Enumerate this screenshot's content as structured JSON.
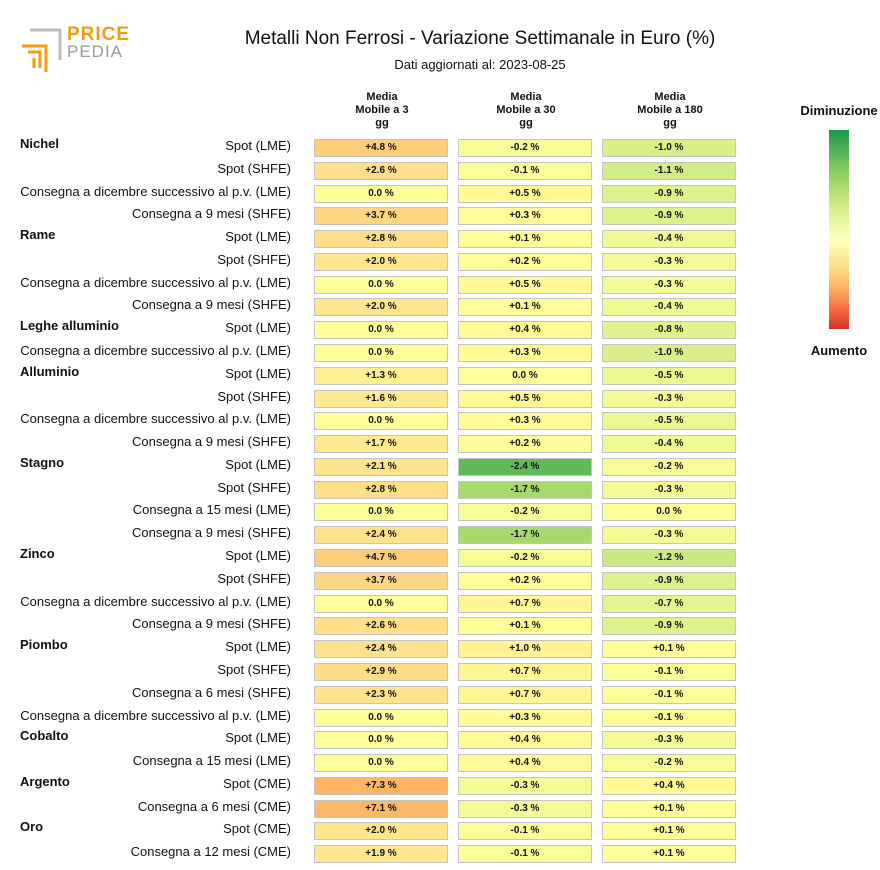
{
  "header": {
    "logo_top": "PRICE",
    "logo_bottom": "PEDIA",
    "title": "Metalli Non Ferrosi - Variazione Settimanale in Euro (%)",
    "subtitle": "Dati aggiornati al: 2023-08-25"
  },
  "legend": {
    "top_label": "Diminuzione",
    "bottom_label": "Aumento",
    "colors": [
      "#1a9850",
      "#91cf60",
      "#d9ef8b",
      "#ffffbf",
      "#fee08b",
      "#fdae61",
      "#f46d43",
      "#d73027"
    ]
  },
  "chart_data": {
    "type": "table",
    "title": "Metalli Non Ferrosi - Variazione Settimanale in Euro (%)",
    "columns": [
      {
        "line1": "Media",
        "line2": "Mobile a 3",
        "line3": "gg"
      },
      {
        "line1": "Media",
        "line2": "Mobile a 30",
        "line3": "gg"
      },
      {
        "line1": "Media",
        "line2": "Mobile a 180",
        "line3": "gg"
      }
    ],
    "rows": [
      {
        "group": "Nichel",
        "label": "Spot (LME)",
        "values": [
          "+4.8 %",
          "-0.2 %",
          "-1.0 %"
        ]
      },
      {
        "group": "",
        "label": "Spot (SHFE)",
        "values": [
          "+2.6 %",
          "-0.1 %",
          "-1.1 %"
        ]
      },
      {
        "group": "",
        "label": "Consegna a dicembre successivo al p.v. (LME)",
        "values": [
          "0.0 %",
          "+0.5 %",
          "-0.9 %"
        ]
      },
      {
        "group": "",
        "label": "Consegna a 9 mesi (SHFE)",
        "values": [
          "+3.7 %",
          "+0.3 %",
          "-0.9 %"
        ]
      },
      {
        "group": "Rame",
        "label": "Spot (LME)",
        "values": [
          "+2.8 %",
          "+0.1 %",
          "-0.4 %"
        ]
      },
      {
        "group": "",
        "label": "Spot (SHFE)",
        "values": [
          "+2.0 %",
          "+0.2 %",
          "-0.3 %"
        ]
      },
      {
        "group": "",
        "label": "Consegna a dicembre successivo al p.v. (LME)",
        "values": [
          "0.0 %",
          "+0.5 %",
          "-0.3 %"
        ]
      },
      {
        "group": "",
        "label": "Consegna a 9 mesi (SHFE)",
        "values": [
          "+2.0 %",
          "+0.1 %",
          "-0.4 %"
        ]
      },
      {
        "group": "Leghe alluminio",
        "label": "Spot (LME)",
        "values": [
          "0.0 %",
          "+0.4 %",
          "-0.8 %"
        ]
      },
      {
        "group": "",
        "label": "Consegna a dicembre successivo al p.v. (LME)",
        "values": [
          "0.0 %",
          "+0.3 %",
          "-1.0 %"
        ]
      },
      {
        "group": "Alluminio",
        "label": "Spot (LME)",
        "values": [
          "+1.3 %",
          "0.0 %",
          "-0.5 %"
        ]
      },
      {
        "group": "",
        "label": "Spot (SHFE)",
        "values": [
          "+1.6 %",
          "+0.5 %",
          "-0.3 %"
        ]
      },
      {
        "group": "",
        "label": "Consegna a dicembre successivo al p.v. (LME)",
        "values": [
          "0.0 %",
          "+0.3 %",
          "-0.5 %"
        ]
      },
      {
        "group": "",
        "label": "Consegna a 9 mesi (SHFE)",
        "values": [
          "+1.7 %",
          "+0.2 %",
          "-0.4 %"
        ]
      },
      {
        "group": "Stagno",
        "label": "Spot (LME)",
        "values": [
          "+2.1 %",
          "-2.4 %",
          "-0.2 %"
        ]
      },
      {
        "group": "",
        "label": "Spot (SHFE)",
        "values": [
          "+2.8 %",
          "-1.7 %",
          "-0.3 %"
        ]
      },
      {
        "group": "",
        "label": "Consegna a 15 mesi (LME)",
        "values": [
          "0.0 %",
          "-0.2 %",
          "0.0 %"
        ]
      },
      {
        "group": "",
        "label": "Consegna a 9 mesi (SHFE)",
        "values": [
          "+2.4 %",
          "-1.7 %",
          "-0.3 %"
        ]
      },
      {
        "group": "Zinco",
        "label": "Spot (LME)",
        "values": [
          "+4.7 %",
          "-0.2 %",
          "-1.2 %"
        ]
      },
      {
        "group": "",
        "label": "Spot (SHFE)",
        "values": [
          "+3.7 %",
          "+0.2 %",
          "-0.9 %"
        ]
      },
      {
        "group": "",
        "label": "Consegna a dicembre successivo al p.v. (LME)",
        "values": [
          "0.0 %",
          "+0.7 %",
          "-0.7 %"
        ]
      },
      {
        "group": "",
        "label": "Consegna a 9 mesi (SHFE)",
        "values": [
          "+2.6 %",
          "+0.1 %",
          "-0.9 %"
        ]
      },
      {
        "group": "Piombo",
        "label": "Spot (LME)",
        "values": [
          "+2.4 %",
          "+1.0 %",
          "+0.1 %"
        ]
      },
      {
        "group": "",
        "label": "Spot (SHFE)",
        "values": [
          "+2.9 %",
          "+0.7 %",
          "-0.1 %"
        ]
      },
      {
        "group": "",
        "label": "Consegna a 6 mesi (SHFE)",
        "values": [
          "+2.3 %",
          "+0.7 %",
          "-0.1 %"
        ]
      },
      {
        "group": "",
        "label": "Consegna a dicembre successivo al p.v. (LME)",
        "values": [
          "0.0 %",
          "+0.3 %",
          "-0.1 %"
        ]
      },
      {
        "group": "Cobalto",
        "label": "Spot (LME)",
        "values": [
          "0.0 %",
          "+0.4 %",
          "-0.3 %"
        ]
      },
      {
        "group": "",
        "label": "Consegna a 15 mesi (LME)",
        "values": [
          "0.0 %",
          "+0.4 %",
          "-0.2 %"
        ]
      },
      {
        "group": "Argento",
        "label": "Spot (CME)",
        "values": [
          "+7.3 %",
          "-0.3 %",
          "+0.4 %"
        ]
      },
      {
        "group": "",
        "label": "Consegna a 6 mesi (CME)",
        "values": [
          "+7.1 %",
          "-0.3 %",
          "+0.1 %"
        ]
      },
      {
        "group": "Oro",
        "label": "Spot (CME)",
        "values": [
          "+2.0 %",
          "-0.1 %",
          "+0.1 %"
        ]
      },
      {
        "group": "",
        "label": "Consegna a 12 mesi (CME)",
        "values": [
          "+1.9 %",
          "-0.1 %",
          "+0.1 %"
        ]
      }
    ]
  }
}
